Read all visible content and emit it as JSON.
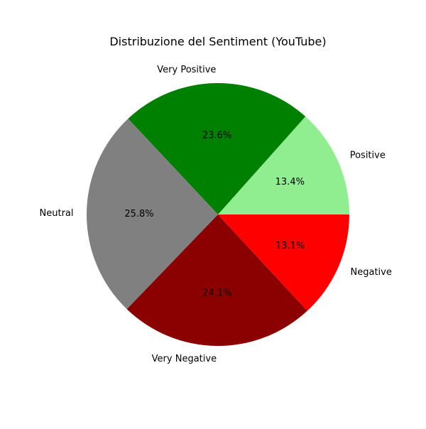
{
  "chart_data": {
    "type": "pie",
    "title": "Distribuzione del Sentiment (YouTube)",
    "slices": [
      {
        "label": "Positive",
        "value": 13.4,
        "pct_label": "13.4%",
        "color": "#90ee90"
      },
      {
        "label": "Very Positive",
        "value": 23.6,
        "pct_label": "23.6%",
        "color": "#008000"
      },
      {
        "label": "Neutral",
        "value": 25.8,
        "pct_label": "25.8%",
        "color": "#808080"
      },
      {
        "label": "Very Negative",
        "value": 24.1,
        "pct_label": "24.1%",
        "color": "#8b0000"
      },
      {
        "label": "Negative",
        "value": 13.1,
        "pct_label": "13.1%",
        "color": "#ff0000"
      }
    ],
    "legend": "none"
  }
}
